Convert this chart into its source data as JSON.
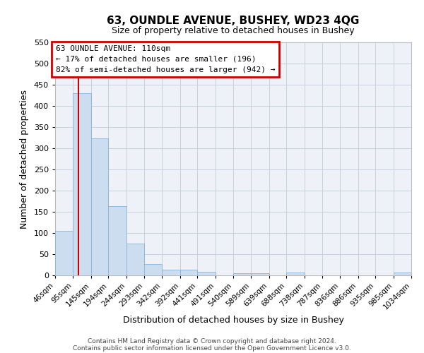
{
  "title": "63, OUNDLE AVENUE, BUSHEY, WD23 4QG",
  "subtitle": "Size of property relative to detached houses in Bushey",
  "xlabel": "Distribution of detached houses by size in Bushey",
  "ylabel": "Number of detached properties",
  "bar_values": [
    105,
    430,
    323,
    163,
    75,
    27,
    13,
    13,
    9,
    0,
    5,
    5,
    0,
    6,
    0,
    0,
    0,
    0,
    0,
    6
  ],
  "bin_edges": [
    46,
    95,
    145,
    194,
    244,
    293,
    342,
    392,
    441,
    491,
    540,
    589,
    639,
    688,
    738,
    787,
    836,
    886,
    935,
    985,
    1034
  ],
  "tick_labels": [
    "46sqm",
    "95sqm",
    "145sqm",
    "194sqm",
    "244sqm",
    "293sqm",
    "342sqm",
    "392sqm",
    "441sqm",
    "491sqm",
    "540sqm",
    "589sqm",
    "639sqm",
    "688sqm",
    "738sqm",
    "787sqm",
    "836sqm",
    "886sqm",
    "935sqm",
    "985sqm",
    "1034sqm"
  ],
  "bar_color": "#ccddf0",
  "bar_edge_color": "#88b4d8",
  "ref_line_x": 110,
  "ref_line_color": "#cc0000",
  "ylim": [
    0,
    550
  ],
  "yticks": [
    0,
    50,
    100,
    150,
    200,
    250,
    300,
    350,
    400,
    450,
    500,
    550
  ],
  "annotation_title": "63 OUNDLE AVENUE: 110sqm",
  "annotation_line1": "← 17% of detached houses are smaller (196)",
  "annotation_line2": "82% of semi-detached houses are larger (942) →",
  "annotation_box_color": "#cc0000",
  "footer_line1": "Contains HM Land Registry data © Crown copyright and database right 2024.",
  "footer_line2": "Contains public sector information licensed under the Open Government Licence v3.0.",
  "background_color": "#eef2f8",
  "grid_color": "#c8d0dc"
}
